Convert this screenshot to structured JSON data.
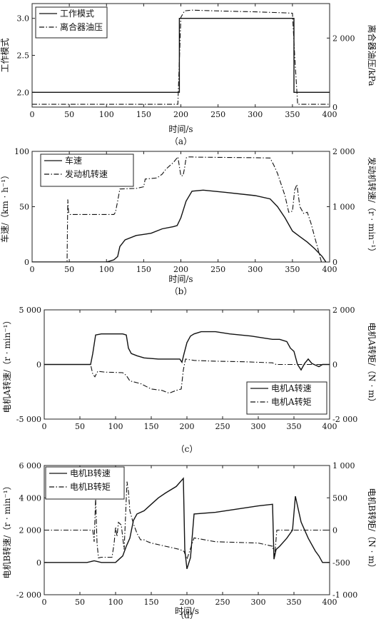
{
  "chart_data": [
    {
      "type": "line",
      "panel_label": "（a）",
      "xlabel": "时间/s",
      "ylabel_left": "工作模式",
      "ylabel_right": "离合器油压/kPa",
      "xlim": [
        0,
        400
      ],
      "x_ticks": [
        "0",
        "50",
        "100",
        "150",
        "200",
        "250",
        "300",
        "350",
        "400"
      ],
      "ylim_left": [
        1.8,
        3.2
      ],
      "y_ticks_left": [
        "2.0",
        "2.5",
        "3.0"
      ],
      "ylim_right": [
        0,
        3000
      ],
      "y_ticks_right": [
        "0",
        "2 000"
      ],
      "grid": false,
      "legend_position": "top-left",
      "series": [
        {
          "name": "工作模式",
          "axis": "left",
          "style": "solid",
          "x": [
            0,
            198,
            198,
            352,
            352,
            400
          ],
          "y": [
            2.0,
            2.0,
            3.0,
            3.0,
            2.0,
            2.0
          ]
        },
        {
          "name": "离合器油压",
          "axis": "right",
          "style": "dashdot",
          "x": [
            0,
            196,
            200,
            205,
            215,
            230,
            260,
            300,
            340,
            350,
            353,
            357,
            400
          ],
          "y": [
            80,
            80,
            2600,
            2790,
            2810,
            2800,
            2780,
            2760,
            2730,
            2720,
            1500,
            80,
            80
          ]
        }
      ]
    },
    {
      "type": "line",
      "panel_label": "（b）",
      "xlabel": "时间/s",
      "ylabel_left": "车速/（km · h⁻¹）",
      "ylabel_right": "发动机转速/（r · min⁻¹）",
      "xlim": [
        0,
        400
      ],
      "x_ticks": [
        "0",
        "50",
        "100",
        "150",
        "200",
        "250",
        "300",
        "350",
        "400"
      ],
      "ylim_left": [
        0,
        100
      ],
      "y_ticks_left": [
        "0",
        "50",
        "100"
      ],
      "ylim_right": [
        0,
        2000
      ],
      "y_ticks_right": [
        "0",
        "1 000",
        "2 000"
      ],
      "grid": false,
      "legend_position": "top-left",
      "series": [
        {
          "name": "车速",
          "axis": "left",
          "style": "solid",
          "x": [
            0,
            100,
            110,
            115,
            118,
            125,
            140,
            150,
            160,
            175,
            190,
            195,
            200,
            207,
            215,
            230,
            260,
            300,
            320,
            330,
            340,
            350,
            360,
            370,
            380,
            390,
            395
          ],
          "y": [
            0,
            0,
            2,
            5,
            14,
            20,
            24,
            25,
            26,
            30,
            32,
            33,
            40,
            55,
            64,
            65,
            63,
            60,
            57,
            50,
            40,
            28,
            23,
            18,
            12,
            5,
            0
          ]
        },
        {
          "name": "发动机转速",
          "axis": "right",
          "style": "dashdot",
          "x": [
            0,
            47,
            48,
            49,
            51,
            55,
            70,
            90,
            110,
            112,
            115,
            118,
            140,
            150,
            152,
            168,
            175,
            180,
            190,
            196,
            200,
            203,
            205,
            207,
            210,
            215,
            220,
            260,
            300,
            320,
            325,
            330,
            340,
            345,
            350,
            353,
            356,
            360,
            365,
            370,
            375,
            380,
            385,
            389
          ],
          "y": [
            0,
            0,
            1130,
            900,
            860,
            860,
            860,
            860,
            860,
            900,
            1100,
            1320,
            1330,
            1360,
            1500,
            1520,
            1590,
            1680,
            1800,
            1900,
            1560,
            1560,
            1700,
            1880,
            1900,
            1900,
            1895,
            1890,
            1885,
            1880,
            1750,
            1600,
            1200,
            900,
            920,
            1300,
            1400,
            1000,
            880,
            900,
            700,
            450,
            200,
            0
          ]
        }
      ]
    },
    {
      "type": "line",
      "panel_label": "（c）",
      "xlabel": "",
      "ylabel_left": "电机A转速/（r · min⁻¹）",
      "ylabel_right": "电机A转矩/（N · m）",
      "xlim": [
        0,
        400
      ],
      "x_ticks": [
        "0",
        "50",
        "100",
        "150",
        "200",
        "250",
        "300",
        "350",
        "400"
      ],
      "ylim_left": [
        -5000,
        5000
      ],
      "y_ticks_left": [
        "-5 000",
        "0",
        "5 000"
      ],
      "ylim_right": [
        -2000,
        2000
      ],
      "y_ticks_right": [
        "-2 000",
        "0",
        "2 000"
      ],
      "grid": false,
      "legend_position": "bottom-right",
      "series": [
        {
          "name": "电机A转速",
          "axis": "left",
          "style": "solid",
          "x": [
            0,
            65,
            68,
            72,
            80,
            95,
            110,
            115,
            118,
            122,
            130,
            140,
            160,
            180,
            190,
            193,
            196,
            200,
            205,
            210,
            220,
            240,
            260,
            290,
            310,
            320,
            330,
            340,
            345,
            350,
            355,
            360,
            365,
            370,
            375,
            385,
            390,
            400
          ],
          "y": [
            0,
            0,
            1000,
            2700,
            2800,
            2800,
            2800,
            2700,
            1500,
            1000,
            800,
            600,
            500,
            500,
            500,
            200,
            1000,
            2000,
            2600,
            2800,
            3000,
            3000,
            2800,
            2600,
            2400,
            2300,
            2300,
            2100,
            1500,
            1200,
            0,
            -500,
            100,
            500,
            100,
            -200,
            0,
            0
          ]
        },
        {
          "name": "电机A转矩",
          "axis": "right",
          "style": "dashdot",
          "x": [
            0,
            65,
            68,
            71,
            75,
            85,
            110,
            115,
            120,
            135,
            150,
            165,
            175,
            185,
            192,
            195,
            198,
            210,
            240,
            280,
            320,
            325,
            330,
            400
          ],
          "y": [
            0,
            0,
            -350,
            -450,
            -250,
            -280,
            -300,
            -400,
            -600,
            -700,
            -900,
            -950,
            -1050,
            -950,
            -900,
            -200,
            200,
            150,
            120,
            100,
            60,
            0,
            0,
            0
          ]
        }
      ]
    },
    {
      "type": "line",
      "panel_label": "（d）",
      "xlabel": "时间/s",
      "ylabel_left": "电机B转速/（r · min⁻¹）",
      "ylabel_right": "电机B转矩/（N · m）",
      "xlim": [
        0,
        400
      ],
      "x_ticks": [
        "0",
        "50",
        "100",
        "150",
        "200",
        "250",
        "300",
        "350",
        "400"
      ],
      "ylim_left": [
        -2000,
        6000
      ],
      "y_ticks_left": [
        "-2 000",
        "0",
        "2 000",
        "4 000",
        "6 000"
      ],
      "ylim_right": [
        -1000,
        1000
      ],
      "y_ticks_right": [
        "-1 000",
        "-500",
        "0",
        "500",
        "1 000"
      ],
      "grid": false,
      "legend_position": "top-left",
      "series": [
        {
          "name": "电机B转速",
          "axis": "left",
          "style": "solid",
          "x": [
            0,
            60,
            70,
            80,
            90,
            100,
            105,
            110,
            115,
            120,
            125,
            130,
            140,
            150,
            160,
            170,
            185,
            195,
            197,
            200,
            205,
            210,
            240,
            270,
            300,
            320,
            322,
            325,
            330,
            340,
            348,
            352,
            355,
            360,
            370,
            380,
            385,
            390,
            400
          ],
          "y": [
            0,
            0,
            100,
            0,
            0,
            0,
            200,
            400,
            1000,
            1500,
            2600,
            3000,
            3200,
            3600,
            4000,
            4300,
            4700,
            5200,
            800,
            -400,
            300,
            3000,
            3100,
            3300,
            3500,
            3600,
            200,
            800,
            1000,
            1500,
            2000,
            4100,
            3500,
            2500,
            1500,
            700,
            400,
            0,
            0
          ]
        },
        {
          "name": "电机B转矩",
          "axis": "right",
          "style": "dashdot",
          "x": [
            0,
            68,
            70,
            72,
            74,
            76,
            80,
            95,
            98,
            100,
            102,
            104,
            108,
            112,
            116,
            118,
            120,
            125,
            130,
            135,
            140,
            145,
            150,
            170,
            190,
            196,
            200,
            210,
            240,
            300,
            320,
            323,
            326,
            400
          ],
          "y": [
            0,
            0,
            -180,
            500,
            -200,
            -430,
            -420,
            -420,
            -200,
            50,
            -100,
            120,
            80,
            -300,
            750,
            600,
            300,
            100,
            -50,
            -150,
            -150,
            -180,
            -200,
            -250,
            -300,
            -330,
            -450,
            -120,
            -180,
            -200,
            -250,
            -400,
            0,
            0
          ]
        }
      ]
    }
  ]
}
